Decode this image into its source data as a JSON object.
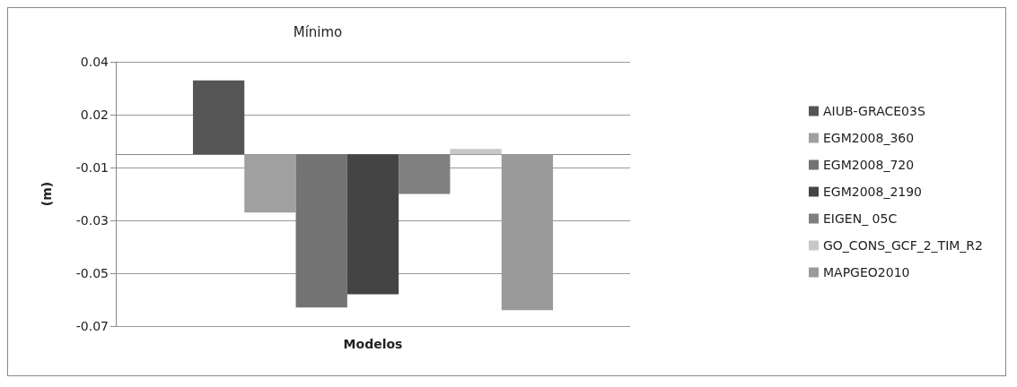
{
  "chart_data": {
    "type": "bar",
    "title": "Mínimo",
    "xlabel": "Modelos",
    "ylabel": "(m)",
    "categories": [
      null
    ],
    "series": [
      {
        "name": "AIUB-GRACE03S",
        "color": "#555555",
        "values": [
          0.028
        ]
      },
      {
        "name": "EGM2008_360",
        "color": "#a0a0a0",
        "values": [
          -0.022
        ]
      },
      {
        "name": "EGM2008_720",
        "color": "#737373",
        "values": [
          -0.058
        ]
      },
      {
        "name": "EGM2008_2190",
        "color": "#444444",
        "values": [
          -0.053
        ]
      },
      {
        "name": "EIGEN_ 05C",
        "color": "#808080",
        "values": [
          -0.015
        ]
      },
      {
        "name": "GO_CONS_GCF_2_TIM_R2",
        "color": "#c8c8c8",
        "values": [
          0.002
        ]
      },
      {
        "name": "MAPGEO2010",
        "color": "#9a9a9a",
        "values": [
          -0.059
        ]
      }
    ],
    "ylim": [
      -0.065,
      0.035
    ],
    "yticks": [
      {
        "value": 0.035,
        "label": "0.04"
      },
      {
        "value": 0.015,
        "label": "0.02"
      },
      {
        "value": -0.005,
        "label": "-0.01"
      },
      {
        "value": -0.025,
        "label": "-0.03"
      },
      {
        "value": -0.045,
        "label": "-0.05"
      },
      {
        "value": -0.065,
        "label": "-0.07"
      }
    ],
    "grid": "y",
    "legend": "right"
  }
}
